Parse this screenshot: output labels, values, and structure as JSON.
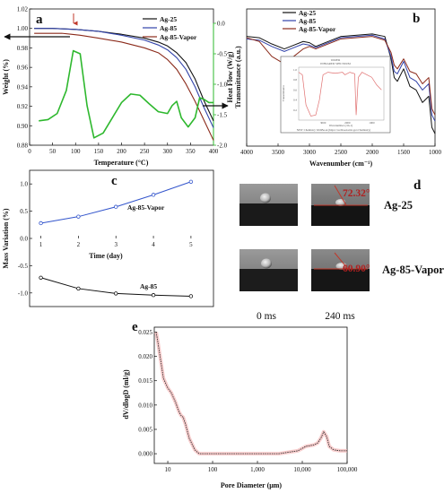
{
  "chart_data": [
    {
      "id": "a",
      "type": "line",
      "panel_label": "a",
      "xlabel": "Temperature (°C)",
      "ylabel": "Weight (%)",
      "ylabel_right": "Heat Flow (W/g)",
      "xlim": [
        0,
        400
      ],
      "ylim": [
        0.88,
        1.02
      ],
      "ylim_right": [
        -2.0,
        0.0
      ],
      "x_ticks": [
        "0",
        "50",
        "100",
        "150",
        "200",
        "250",
        "300",
        "350",
        "400"
      ],
      "y_ticks": [
        "0.88",
        "0.90",
        "0.92",
        "0.94",
        "0.96",
        "0.98",
        "1.00",
        "1.02"
      ],
      "y_right_ticks": [
        "-2.0",
        "-1.5",
        "-1.0",
        "-0.5",
        "0.0"
      ],
      "legend": [
        "Ag-25",
        "Ag-85",
        "Ag-85-Vapor"
      ],
      "legend_position": "top-right",
      "grid": false,
      "series": [
        {
          "name": "Ag-25",
          "color": "#111111",
          "x": [
            10,
            50,
            100,
            150,
            200,
            250,
            280,
            300,
            320,
            340,
            360,
            380,
            400
          ],
          "y": [
            1.0,
            1.0,
            0.999,
            0.997,
            0.994,
            0.99,
            0.986,
            0.982,
            0.975,
            0.965,
            0.948,
            0.925,
            0.905
          ]
        },
        {
          "name": "Ag-85",
          "color": "#3344aa",
          "x": [
            10,
            50,
            100,
            150,
            200,
            250,
            280,
            300,
            320,
            340,
            360,
            380,
            400
          ],
          "y": [
            1.0,
            1.0,
            0.999,
            0.997,
            0.993,
            0.988,
            0.983,
            0.978,
            0.97,
            0.958,
            0.94,
            0.918,
            0.898
          ]
        },
        {
          "name": "Ag-85-Vapor",
          "color": "#8b2a1a",
          "x": [
            10,
            30,
            50,
            70,
            90,
            110,
            150,
            200,
            250,
            280,
            300,
            320,
            340,
            360,
            380,
            400
          ],
          "y": [
            0.995,
            0.995,
            0.995,
            0.995,
            0.994,
            0.993,
            0.99,
            0.986,
            0.98,
            0.975,
            0.968,
            0.958,
            0.943,
            0.925,
            0.905,
            0.885
          ]
        },
        {
          "name": "Heat Flow",
          "color": "#2eb82e",
          "axis": "right",
          "x": [
            20,
            40,
            60,
            80,
            95,
            110,
            125,
            140,
            160,
            180,
            200,
            220,
            240,
            260,
            280,
            300,
            310,
            320,
            330,
            345,
            360,
            370,
            380,
            390,
            400
          ],
          "y": [
            -1.6,
            -1.58,
            -1.48,
            -1.1,
            -0.45,
            -0.5,
            -1.35,
            -1.88,
            -1.8,
            -1.55,
            -1.3,
            -1.16,
            -1.18,
            -1.32,
            -1.45,
            -1.48,
            -1.35,
            -1.28,
            -1.55,
            -1.7,
            -1.55,
            -1.22,
            -1.25,
            -1.3,
            -1.3
          ]
        }
      ],
      "annotations": {
        "arrow_x": 110
      }
    },
    {
      "id": "b",
      "type": "line",
      "panel_label": "b",
      "xlabel": "Wavenumber (cm⁻¹)",
      "ylabel": "Transmittance (a.u.)",
      "xlim": [
        4000,
        1000
      ],
      "x_ticks": [
        "4000",
        "3500",
        "3000",
        "2500",
        "2000",
        "1500",
        "1000"
      ],
      "legend": [
        "Ag-25",
        "Ag-85",
        "Ag-85-Vapor"
      ],
      "legend_position": "top-left",
      "grid": false,
      "series": [
        {
          "name": "Ag-25",
          "color": "#111111",
          "x": [
            4000,
            3800,
            3600,
            3400,
            3300,
            3100,
            3000,
            2900,
            2500,
            2000,
            1800,
            1700,
            1650,
            1600,
            1500,
            1400,
            1300,
            1200,
            1100,
            1050,
            1000
          ],
          "y": [
            0.88,
            0.87,
            0.82,
            0.78,
            0.8,
            0.84,
            0.83,
            0.8,
            0.88,
            0.9,
            0.88,
            0.7,
            0.55,
            0.52,
            0.62,
            0.48,
            0.45,
            0.35,
            0.4,
            0.15,
            0.1
          ]
        },
        {
          "name": "Ag-85",
          "color": "#3344aa",
          "x": [
            4000,
            3800,
            3600,
            3400,
            3300,
            3100,
            3000,
            2900,
            2500,
            2000,
            1800,
            1700,
            1650,
            1600,
            1500,
            1400,
            1300,
            1200,
            1100,
            1050,
            1000
          ],
          "y": [
            0.86,
            0.85,
            0.8,
            0.76,
            0.78,
            0.82,
            0.81,
            0.79,
            0.87,
            0.89,
            0.86,
            0.72,
            0.6,
            0.58,
            0.68,
            0.55,
            0.52,
            0.45,
            0.5,
            0.25,
            0.2
          ]
        },
        {
          "name": "Ag-85-Vapor",
          "color": "#8b2a1a",
          "x": [
            4000,
            3800,
            3600,
            3400,
            3300,
            3100,
            3000,
            2900,
            2500,
            2000,
            1800,
            1700,
            1650,
            1600,
            1500,
            1400,
            1300,
            1200,
            1100,
            1050,
            1000
          ],
          "y": [
            0.87,
            0.84,
            0.72,
            0.66,
            0.7,
            0.78,
            0.8,
            0.78,
            0.86,
            0.88,
            0.85,
            0.75,
            0.65,
            0.62,
            0.7,
            0.6,
            0.58,
            0.5,
            0.55,
            0.3,
            0.25
          ]
        }
      ],
      "inset": {
        "title": "WATER",
        "subtitle": "INFRARED SPECTRUM",
        "ylabel": "Transmittance",
        "xlabel": "Wavenumber (cm-1)",
        "x_ticks": [
          "3000",
          "2000",
          "1000"
        ],
        "y_ticks": [
          "1.0",
          "0.8",
          "0.6",
          "0.4",
          "0.2"
        ],
        "footer": "NIST Chemistry WebBook (https://webbook.nist.gov/chemistry)",
        "series": {
          "color": "#e07070",
          "x": [
            4000,
            3850,
            3700,
            3500,
            3300,
            3150,
            3000,
            2800,
            2500,
            2200,
            2100,
            1900,
            1700,
            1640,
            1550,
            1400,
            1200,
            1000,
            800,
            600
          ],
          "y": [
            0.95,
            0.9,
            0.3,
            0.08,
            0.1,
            0.4,
            0.9,
            0.95,
            0.93,
            0.95,
            0.9,
            0.95,
            0.92,
            0.1,
            0.85,
            0.95,
            0.9,
            0.85,
            0.7,
            0.6
          ]
        }
      }
    },
    {
      "id": "c",
      "type": "line",
      "panel_label": "c",
      "xlabel": "Time (day)",
      "ylabel": "Mass Variation (%)",
      "xlim": [
        0.7,
        5.6
      ],
      "ylim": [
        -1.25,
        1.25
      ],
      "x_ticks": [
        "1",
        "2",
        "3",
        "4",
        "5"
      ],
      "y_ticks": [
        "1.0",
        "0.5",
        "0.0",
        "-0.5",
        "-1.0"
      ],
      "grid": false,
      "series": [
        {
          "name": "Ag-85-Vapor",
          "color": "#3355cc",
          "x": [
            1,
            2,
            3,
            4,
            5
          ],
          "y": [
            0.28,
            0.4,
            0.58,
            0.8,
            1.04
          ]
        },
        {
          "name": "Ag-85",
          "color": "#111111",
          "x": [
            1,
            2,
            3,
            4,
            5
          ],
          "y": [
            -0.72,
            -0.92,
            -1.01,
            -1.04,
            -1.06
          ]
        }
      ]
    },
    {
      "id": "e",
      "type": "line",
      "panel_label": "e",
      "xlabel": "Pore Diameter (μm)",
      "ylabel": "dV/dlogD (ml/g)",
      "xscale": "log",
      "xlim": [
        5,
        100000
      ],
      "ylim": [
        -0.002,
        0.026
      ],
      "x_ticks": [
        "10",
        "100",
        "1,000",
        "10,000",
        "100,000"
      ],
      "y_ticks": [
        "0.000",
        "0.005",
        "0.010",
        "0.015",
        "0.020",
        "0.025"
      ],
      "grid": false,
      "series": [
        {
          "name": "Pore Diameter",
          "color": "#222222",
          "x": [
            5.5,
            6,
            7,
            8,
            10,
            12,
            15,
            18,
            20,
            22,
            25,
            30,
            40,
            50,
            70,
            100,
            300,
            1000,
            3000,
            8000,
            12000,
            18000,
            22000,
            26000,
            30000,
            35000,
            40000,
            50000,
            70000,
            100000
          ],
          "y": [
            0.025,
            0.023,
            0.019,
            0.0155,
            0.0135,
            0.0125,
            0.0105,
            0.0085,
            0.0078,
            0.0075,
            0.006,
            0.0032,
            0.0008,
            0.0,
            0.0,
            0.0,
            0.0,
            0.0,
            0.0,
            0.0006,
            0.0015,
            0.0018,
            0.0022,
            0.0032,
            0.0045,
            0.0035,
            0.0015,
            0.0008,
            0.0006,
            0.0006
          ]
        }
      ]
    }
  ],
  "panel_d": {
    "panel_label": "d",
    "angles": [
      "72.32°",
      "60.90°"
    ],
    "samples": [
      "Ag-25",
      "Ag-85-Vapor"
    ],
    "times": [
      "0 ms",
      "240 ms"
    ]
  }
}
